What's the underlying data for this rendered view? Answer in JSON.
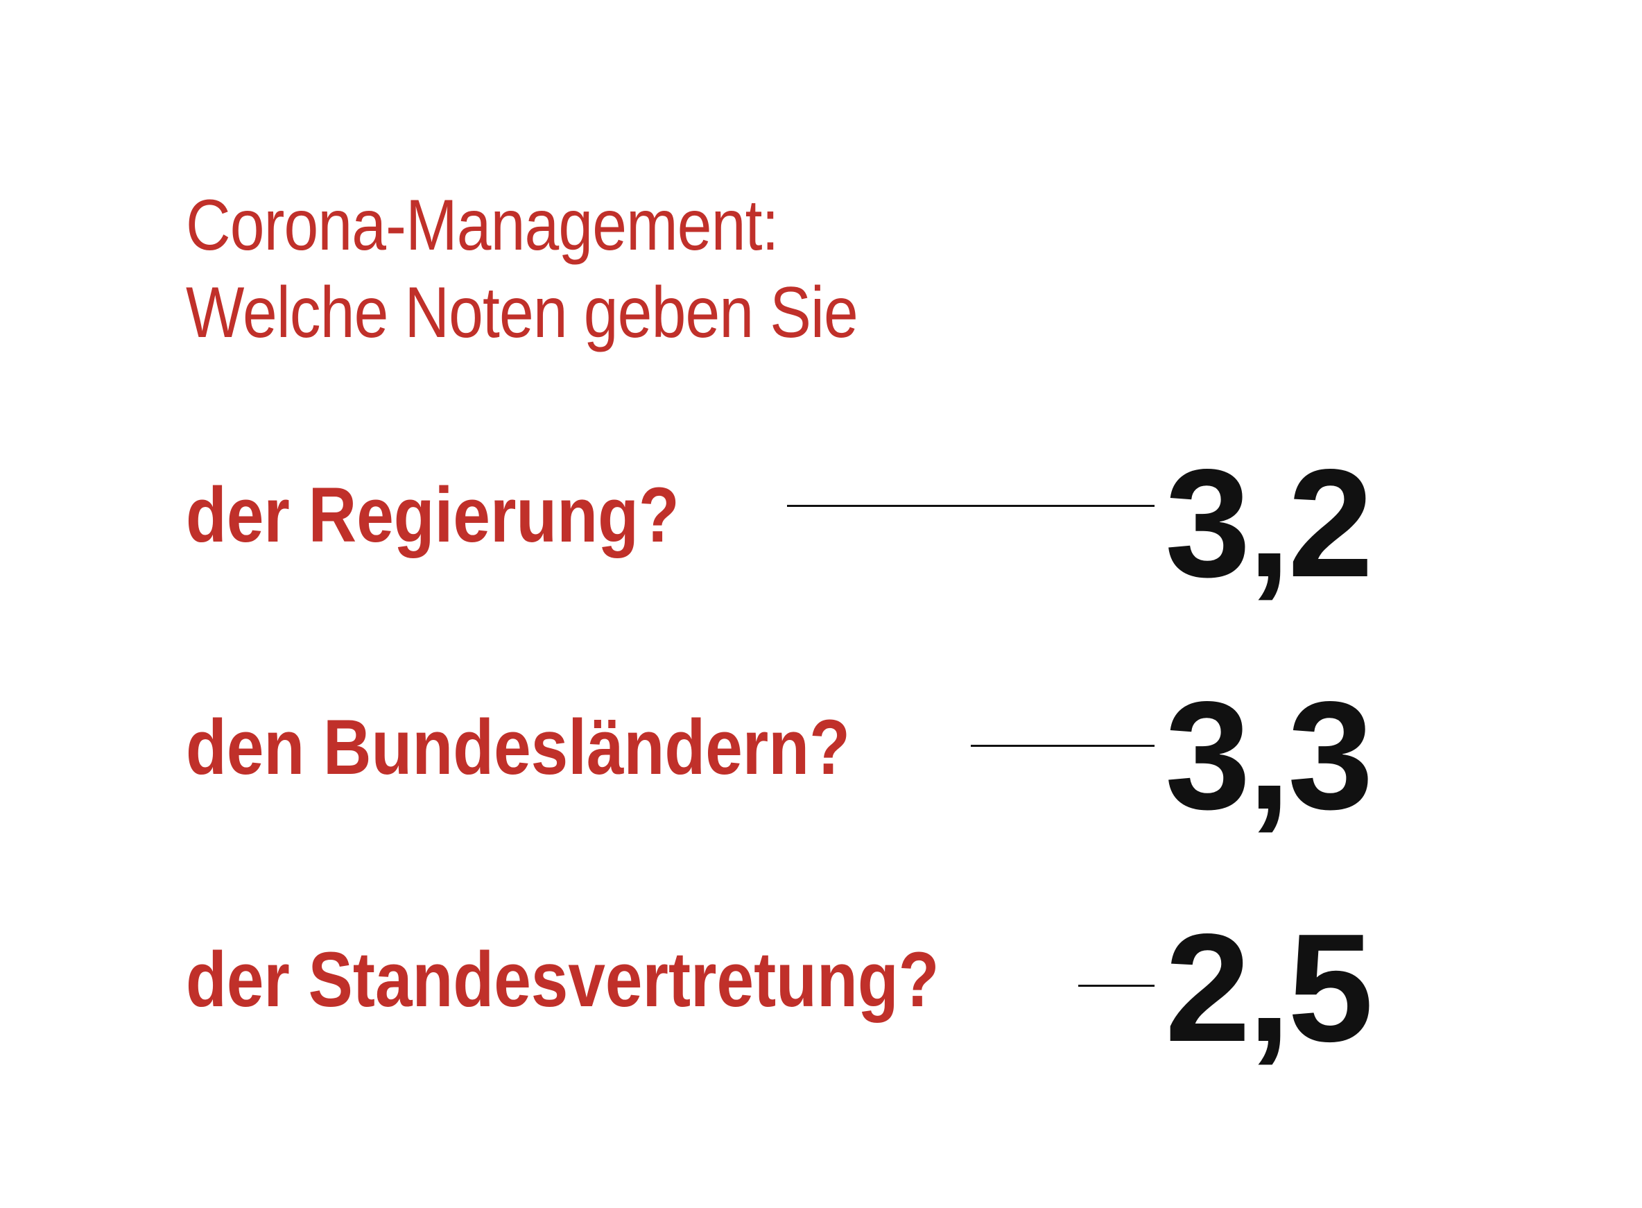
{
  "heading": {
    "line1": "Corona-Management:",
    "line2": "Welche Noten geben Sie"
  },
  "rows": [
    {
      "label": "der Regierung?",
      "score": "3,2"
    },
    {
      "label": "den Bundesländern?",
      "score": "3,3"
    },
    {
      "label": "der Standesvertretung?",
      "score": "2,5"
    }
  ],
  "colors": {
    "accent": "#c0302a",
    "text": "#111111",
    "background": "#ffffff"
  }
}
